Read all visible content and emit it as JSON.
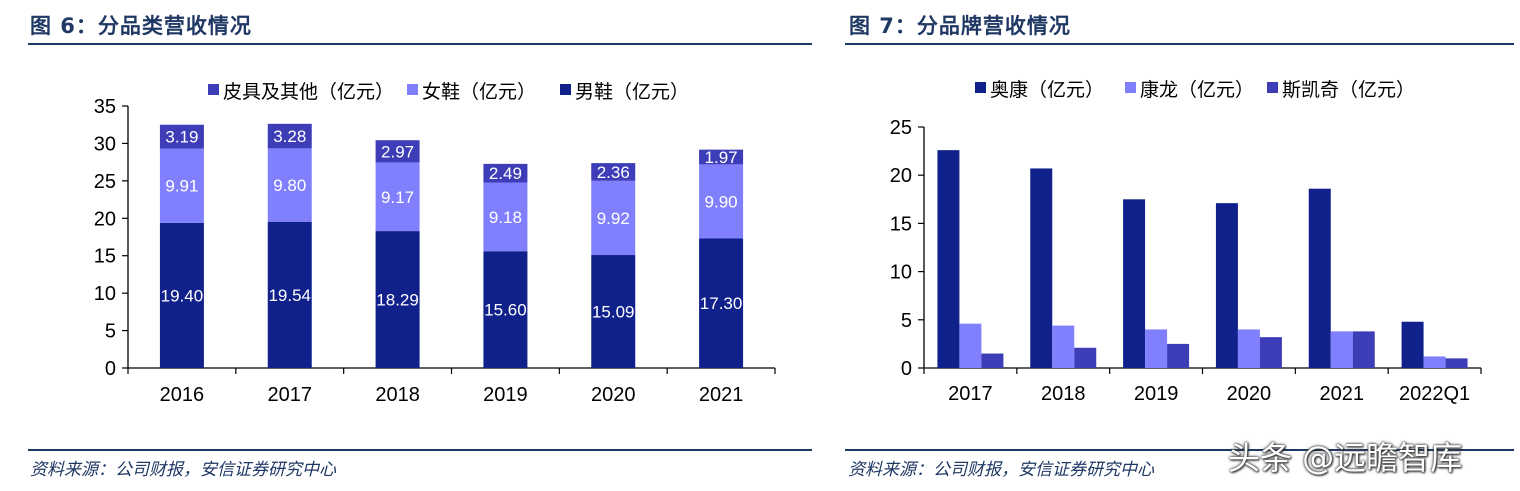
{
  "left": {
    "title": "图 6：分品类营收情况",
    "source": "资料来源：公司财报，安信证券研究中心"
  },
  "right": {
    "title": "图 7：分品牌营收情况",
    "source": "资料来源：公司财报，安信证券研究中心"
  },
  "watermark": "头条 @远瞻智库",
  "colors": {
    "dark": "#10218b",
    "light": "#8080ff",
    "mid": "#3d3db8",
    "title": "#1f3864",
    "axis": "#000000"
  },
  "chart_data": [
    {
      "type": "bar",
      "stacked": true,
      "title": "",
      "xlabel": "",
      "ylabel": "",
      "categories": [
        "2016",
        "2017",
        "2018",
        "2019",
        "2020",
        "2021"
      ],
      "ylim": [
        0,
        35
      ],
      "yticks": [
        0,
        5,
        10,
        15,
        20,
        25,
        30,
        35
      ],
      "legend_position": "top",
      "legend_order": [
        2,
        1,
        0
      ],
      "series": [
        {
          "name": "男鞋（亿元）",
          "values": [
            19.4,
            19.54,
            18.29,
            15.6,
            15.09,
            17.3
          ],
          "labels": [
            "19.40",
            "19.54",
            "18.29",
            "15.60",
            "15.09",
            "17.30"
          ],
          "color": "#10218b"
        },
        {
          "name": "女鞋（亿元）",
          "values": [
            9.91,
            9.8,
            9.17,
            9.18,
            9.92,
            9.9
          ],
          "labels": [
            "9.91",
            "9.80",
            "9.17",
            "9.18",
            "9.92",
            "9.90"
          ],
          "color": "#8080ff"
        },
        {
          "name": "皮具及其他（亿元）",
          "values": [
            3.19,
            3.28,
            2.97,
            2.49,
            2.36,
            1.97
          ],
          "labels": [
            "3.19",
            "3.28",
            "2.97",
            "2.49",
            "2.36",
            "1.97"
          ],
          "color": "#3d3db8"
        }
      ]
    },
    {
      "type": "bar",
      "stacked": false,
      "title": "",
      "xlabel": "",
      "ylabel": "",
      "categories": [
        "2017",
        "2018",
        "2019",
        "2020",
        "2021",
        "2022Q1"
      ],
      "ylim": [
        0,
        25
      ],
      "yticks": [
        0,
        5,
        10,
        15,
        20,
        25
      ],
      "legend_position": "top",
      "legend_order": [
        0,
        1,
        2
      ],
      "series": [
        {
          "name": "奥康（亿元）",
          "values": [
            22.6,
            20.7,
            17.5,
            17.1,
            18.6,
            4.8
          ],
          "color": "#10218b"
        },
        {
          "name": "康龙（亿元）",
          "values": [
            4.6,
            4.4,
            4.0,
            4.0,
            3.8,
            1.2
          ],
          "color": "#8080ff"
        },
        {
          "name": "斯凯奇（亿元）",
          "values": [
            1.5,
            2.1,
            2.5,
            3.2,
            3.8,
            1.0
          ],
          "color": "#3d3db8"
        }
      ]
    }
  ]
}
